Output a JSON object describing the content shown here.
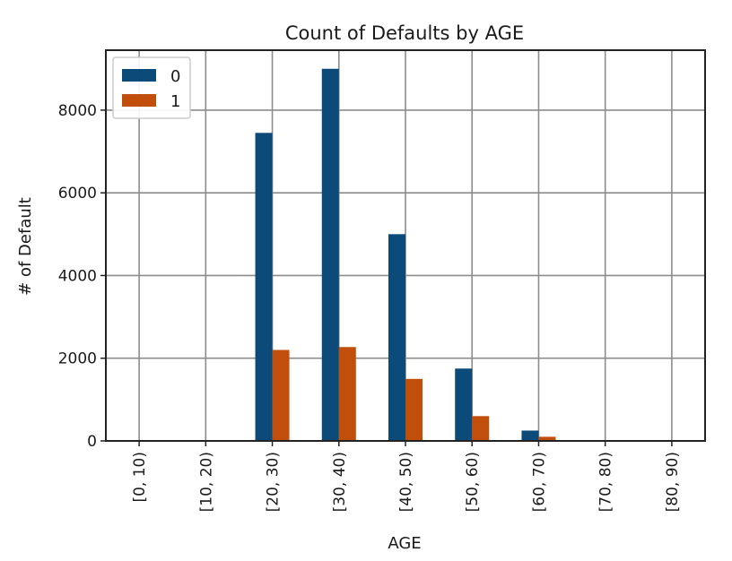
{
  "chart_data": {
    "type": "bar",
    "title": "Count of Defaults by AGE",
    "xlabel": "AGE",
    "ylabel": "# of Default",
    "categories": [
      "[0, 10)",
      "[10, 20)",
      "[20, 30)",
      "[30, 40)",
      "[40, 50)",
      "[50, 60)",
      "[60, 70)",
      "[70, 80)",
      "[80, 90)"
    ],
    "series": [
      {
        "name": "0",
        "color": "#0c4a7a",
        "values": [
          0,
          0,
          7450,
          9000,
          5000,
          1750,
          250,
          0,
          0
        ]
      },
      {
        "name": "1",
        "color": "#c24e0c",
        "values": [
          0,
          0,
          2200,
          2270,
          1500,
          600,
          100,
          0,
          0
        ]
      }
    ],
    "ylim": [
      0,
      9450
    ],
    "yticks": [
      0,
      2000,
      4000,
      6000,
      8000
    ],
    "grid": true,
    "legend_position": "top-left"
  }
}
